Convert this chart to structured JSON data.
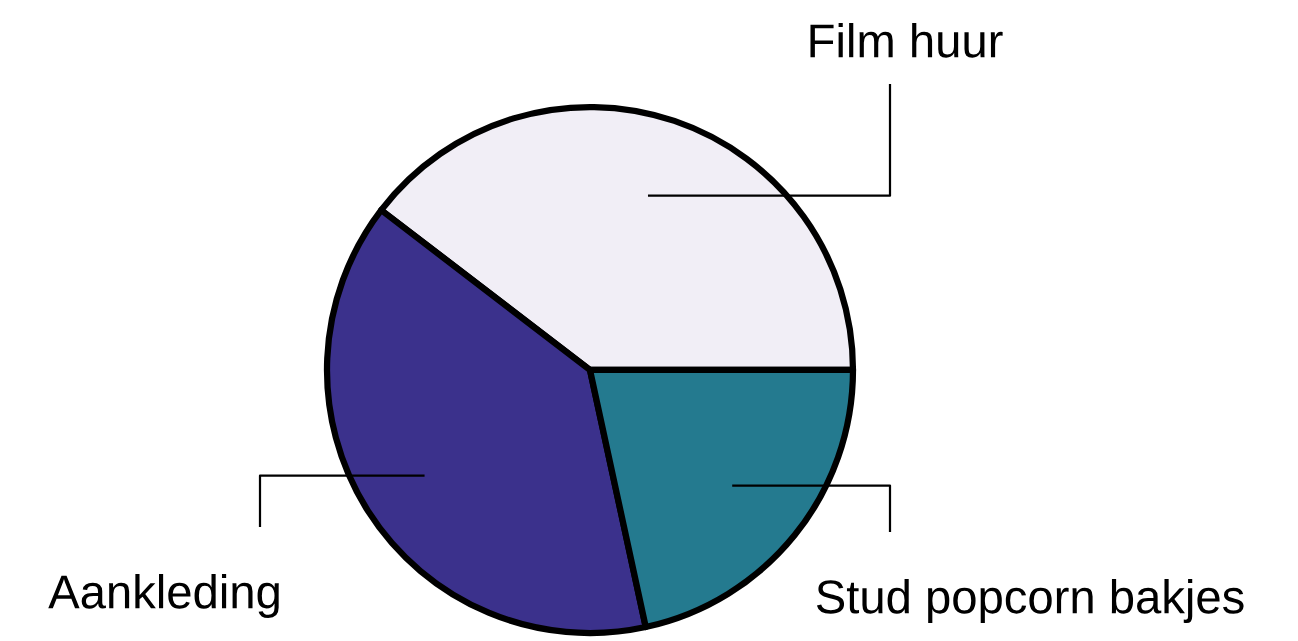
{
  "chart_data": {
    "type": "pie",
    "categories": [
      "Film huur",
      "Aankleding",
      "Stud popcorn bakjes"
    ],
    "values": [
      39.6,
      38.8,
      21.6
    ],
    "colors": [
      "#f1eef6",
      "#3b318c",
      "#247a8f"
    ]
  }
}
